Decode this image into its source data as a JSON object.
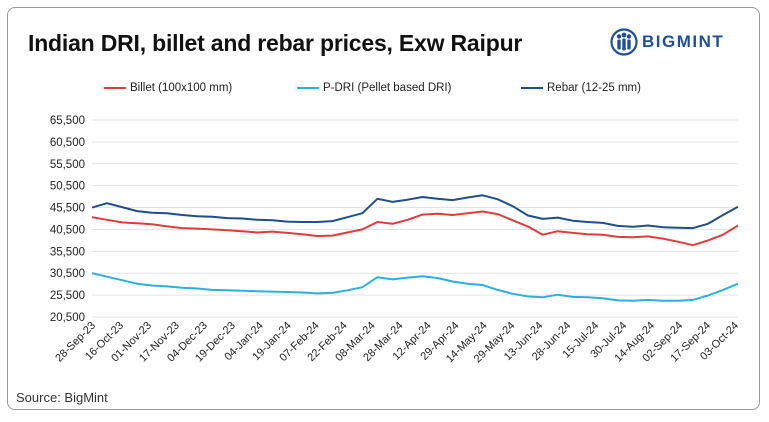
{
  "brand": {
    "name": "BIGMINT",
    "color": "#1f4e9a"
  },
  "source": "Source: BigMint",
  "chart_data": {
    "type": "line",
    "title": "Indian DRI, billet and rebar prices, Exw Raipur",
    "xlabel": "",
    "ylabel": "",
    "ylim": [
      20500,
      65500
    ],
    "yticks": [
      "65,500",
      "60,500",
      "55,500",
      "50,500",
      "45,500",
      "40,500",
      "35,500",
      "30,500",
      "25,500",
      "20,500"
    ],
    "ytick_values": [
      65500,
      60500,
      55500,
      50500,
      45500,
      40500,
      35500,
      30500,
      25500,
      20500
    ],
    "grid": "horizontal",
    "legend_position": "top",
    "x_labels": [
      "28-Sep-23",
      "16-Oct-23",
      "01-Nov-23",
      "17-Nov-23",
      "04-Dec-23",
      "19-Dec-23",
      "04-Jan-24",
      "19-Jan-24",
      "07-Feb-24",
      "22-Feb-24",
      "08-Mar-24",
      "28-Mar-24",
      "12-Apr-24",
      "29-Apr-24",
      "14-May-24",
      "29-May-24",
      "13-Jun-24",
      "28-Jun-24",
      "15-Jul-24",
      "30-Jul-24",
      "14-Aug-24",
      "02-Sep-24",
      "17-Sep-24",
      "03-Oct-24"
    ],
    "series": [
      {
        "name": "Billet (100x100 mm)",
        "color": "#e03c3c",
        "values": [
          43300,
          42700,
          42100,
          41900,
          41700,
          41200,
          40800,
          40700,
          40500,
          40300,
          40100,
          39800,
          40000,
          39700,
          39400,
          39000,
          39100,
          39800,
          40500,
          42200,
          41800,
          42700,
          43900,
          44100,
          43800,
          44200,
          44600,
          44000,
          42600,
          41200,
          39300,
          40100,
          39700,
          39400,
          39300,
          38800,
          38700,
          38900,
          38400,
          37700,
          36900,
          38000,
          39300,
          41400
        ]
      },
      {
        "name": "P-DRI (Pellet based DRI)",
        "color": "#2ab0e0",
        "values": [
          30500,
          29700,
          28900,
          28100,
          27700,
          27500,
          27200,
          27000,
          26700,
          26600,
          26500,
          26400,
          26300,
          26200,
          26100,
          25900,
          26000,
          26600,
          27300,
          29600,
          29100,
          29500,
          29800,
          29400,
          28600,
          28100,
          27800,
          26700,
          25800,
          25200,
          25000,
          25600,
          25100,
          25000,
          24800,
          24300,
          24200,
          24400,
          24200,
          24200,
          24400,
          25400,
          26700,
          28100
        ]
      },
      {
        "name": "Rebar (12-25 mm)",
        "color": "#1f4e8c",
        "values": [
          45500,
          46500,
          45600,
          44700,
          44300,
          44200,
          43800,
          43500,
          43400,
          43100,
          43000,
          42700,
          42600,
          42300,
          42200,
          42200,
          42400,
          43300,
          44200,
          47500,
          46800,
          47300,
          47900,
          47500,
          47200,
          47800,
          48300,
          47400,
          45800,
          43700,
          42900,
          43200,
          42500,
          42200,
          42000,
          41300,
          41100,
          41400,
          41000,
          40900,
          40800,
          41800,
          43800,
          45700
        ]
      }
    ]
  }
}
